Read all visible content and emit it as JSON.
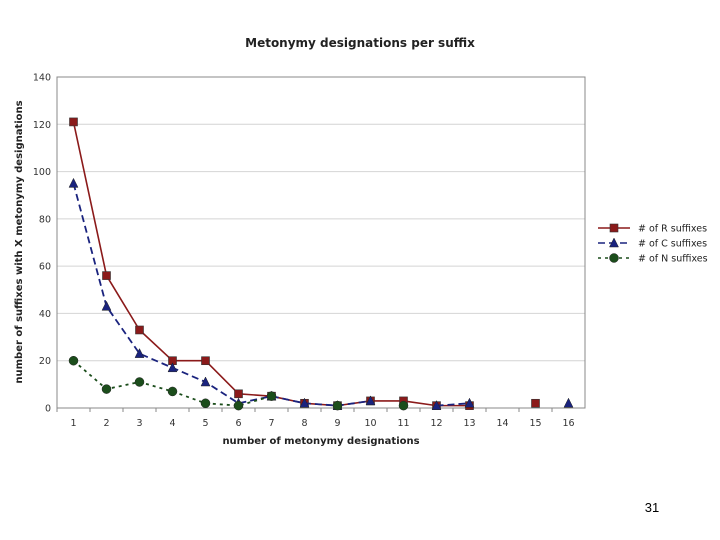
{
  "slide": {
    "page_number": "31"
  },
  "chart_data": {
    "type": "line",
    "title": "Metonymy designations per suffix",
    "xlabel": "number of metonymy designations",
    "ylabel": "number of suffixes with X metonymy designations",
    "x": [
      1,
      2,
      3,
      4,
      5,
      6,
      7,
      8,
      9,
      10,
      11,
      12,
      13,
      14,
      15,
      16
    ],
    "x_tick_labels": [
      "1",
      "2",
      "3",
      "4",
      "5",
      "6",
      "7",
      "8",
      "9",
      "10",
      "11",
      "12",
      "13",
      "14",
      "15",
      "16"
    ],
    "ylim": [
      0,
      140
    ],
    "y_ticks": [
      0,
      20,
      40,
      60,
      80,
      100,
      120,
      140
    ],
    "grid": "horizontal",
    "legend_position": "right",
    "series": [
      {
        "name": "# of R suffixes",
        "color": "#8b1a1a",
        "marker": "square",
        "dash": "solid",
        "segments": [
          [
            [
              1,
              121
            ],
            [
              2,
              56
            ],
            [
              3,
              33
            ],
            [
              4,
              20
            ],
            [
              5,
              20
            ],
            [
              6,
              6
            ],
            [
              7,
              5
            ],
            [
              8,
              2
            ],
            [
              9,
              1
            ],
            [
              10,
              3
            ],
            [
              11,
              3
            ],
            [
              12,
              1
            ],
            [
              13,
              1
            ]
          ],
          [
            [
              15,
              2
            ]
          ]
        ]
      },
      {
        "name": "# of C suffixes",
        "color": "#1a237e",
        "marker": "triangle",
        "dash": "dashed",
        "segments": [
          [
            [
              1,
              95
            ],
            [
              2,
              43
            ],
            [
              3,
              23
            ],
            [
              4,
              17
            ],
            [
              5,
              11
            ],
            [
              6,
              2
            ],
            [
              7,
              5
            ],
            [
              8,
              2
            ],
            [
              9,
              1
            ],
            [
              10,
              3
            ],
            [
              11,
              null
            ],
            [
              12,
              1
            ],
            [
              13,
              2
            ]
          ],
          [
            [
              16,
              2
            ]
          ]
        ]
      },
      {
        "name": "# of N suffixes",
        "color": "#1b4d1b",
        "marker": "circle",
        "dash": "dotted",
        "segments": [
          [
            [
              1,
              20
            ],
            [
              2,
              8
            ],
            [
              3,
              11
            ],
            [
              4,
              7
            ],
            [
              5,
              2
            ],
            [
              6,
              1
            ],
            [
              7,
              5
            ],
            [
              8,
              null
            ],
            [
              9,
              1
            ],
            [
              10,
              null
            ],
            [
              11,
              1
            ]
          ]
        ]
      }
    ]
  }
}
